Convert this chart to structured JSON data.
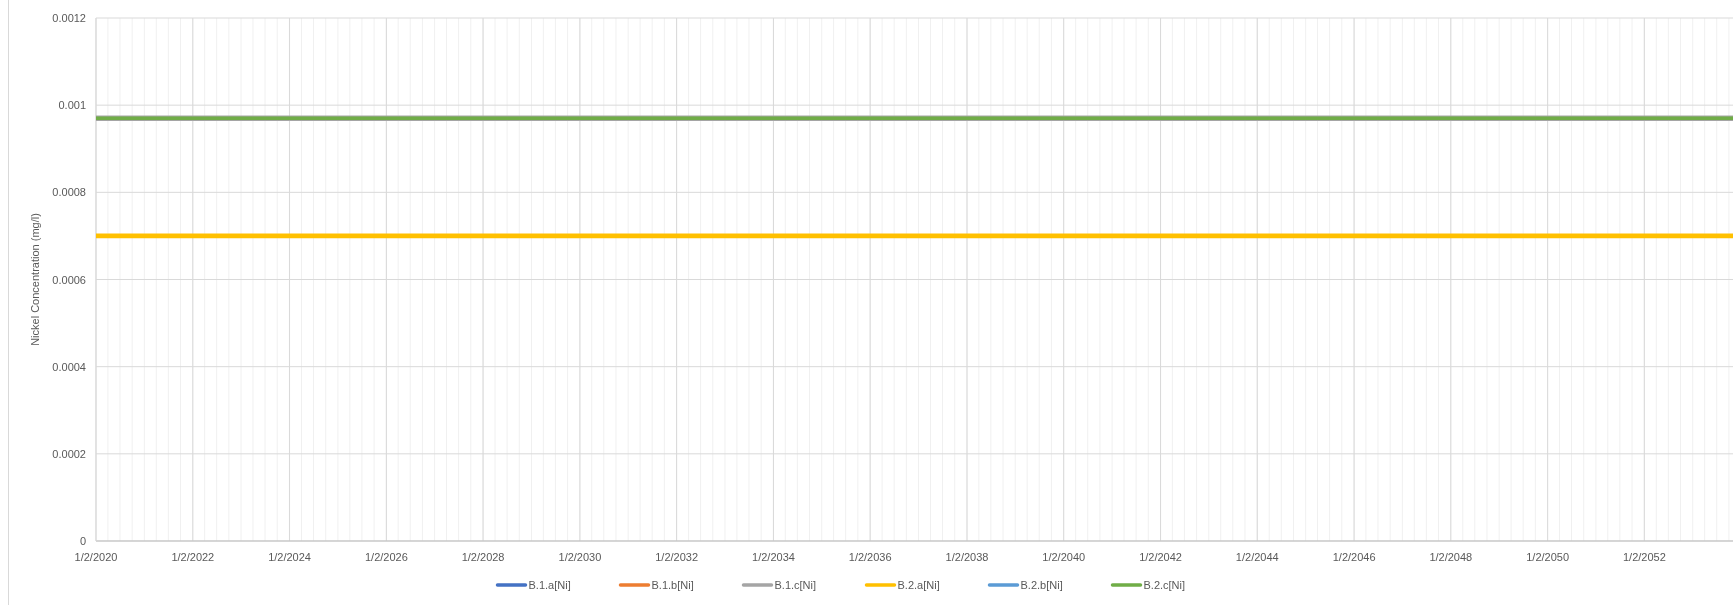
{
  "chart_data": {
    "type": "line",
    "ylabel": "Nickel Concentration (mg/l)",
    "x": [
      "2020-01-02",
      "2053-11-01"
    ],
    "xlim": [
      "2020-01-02",
      "2053-11-01"
    ],
    "xticks": [
      {
        "value": "2020-01-02",
        "label": "1/2/2020"
      },
      {
        "value": "2022-01-02",
        "label": "1/2/2022"
      },
      {
        "value": "2024-01-02",
        "label": "1/2/2024"
      },
      {
        "value": "2026-01-02",
        "label": "1/2/2026"
      },
      {
        "value": "2028-01-02",
        "label": "1/2/2028"
      },
      {
        "value": "2030-01-02",
        "label": "1/2/2030"
      },
      {
        "value": "2032-01-02",
        "label": "1/2/2032"
      },
      {
        "value": "2034-01-02",
        "label": "1/2/2034"
      },
      {
        "value": "2036-01-02",
        "label": "1/2/2036"
      },
      {
        "value": "2038-01-02",
        "label": "1/2/2038"
      },
      {
        "value": "2040-01-02",
        "label": "1/2/2040"
      },
      {
        "value": "2042-01-02",
        "label": "1/2/2042"
      },
      {
        "value": "2044-01-02",
        "label": "1/2/2044"
      },
      {
        "value": "2046-01-02",
        "label": "1/2/2046"
      },
      {
        "value": "2048-01-02",
        "label": "1/2/2048"
      },
      {
        "value": "2050-01-02",
        "label": "1/2/2050"
      },
      {
        "value": "2052-01-02",
        "label": "1/2/2052"
      }
    ],
    "ylim": [
      0,
      0.0012
    ],
    "yticks": [
      0,
      0.0002,
      0.0004,
      0.0006,
      0.0008,
      0.001,
      0.0012
    ],
    "grid": true,
    "legend": "bottom",
    "marker": "none",
    "line_style": "solid",
    "series": [
      {
        "name": "B.1.a[Ni]",
        "color": "#4472c4",
        "values": [
          null,
          null
        ]
      },
      {
        "name": "B.1.b[Ni]",
        "color": "#ed7d31",
        "values": [
          null,
          null
        ]
      },
      {
        "name": "B.1.c[Ni]",
        "color": "#a5a5a5",
        "values": [
          0.00097,
          0.00097
        ]
      },
      {
        "name": "B.2.a[Ni]",
        "color": "#ffc000",
        "values": [
          0.0007,
          0.0007
        ]
      },
      {
        "name": "B.2.b[Ni]",
        "color": "#5b9bd5",
        "values": [
          null,
          null
        ]
      },
      {
        "name": "B.2.c[Ni]",
        "color": "#70ad47",
        "values": [
          0.00097,
          0.00097
        ]
      }
    ]
  }
}
